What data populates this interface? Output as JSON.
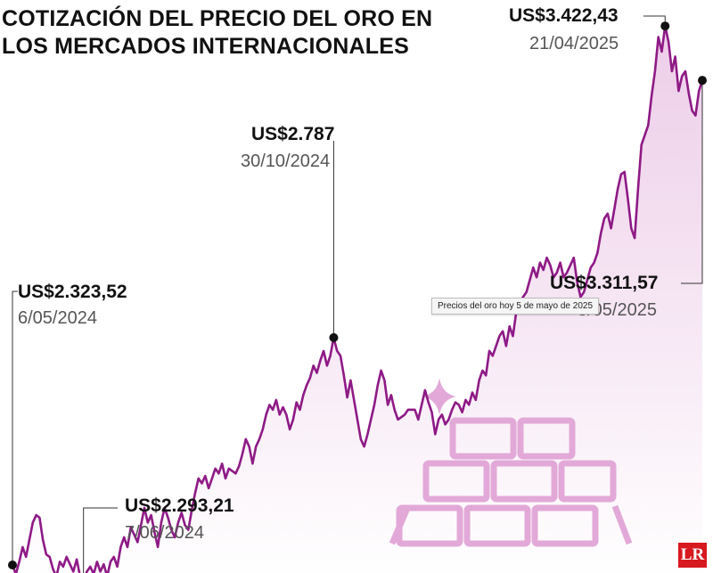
{
  "title_lines": [
    "COTIZACIÓN DEL PRECIO DEL ORO EN",
    "LOS MERCADOS INTERNACIONALES"
  ],
  "tooltip": "Precios del oro hoy 5 de mayo de 2025",
  "logo": "LR",
  "colors": {
    "line": "#8e1a86",
    "fill_top": "#eccbe7",
    "fill_bottom": "#ffffff",
    "marker": "#111111",
    "bars": "#e2a9d8",
    "logo_bg": "#d71920"
  },
  "icons": [
    "sparkle-icon",
    "gold-bars-icon"
  ],
  "annotations": [
    {
      "id": "start",
      "value": "US$2.323,52",
      "date": "6/05/2024"
    },
    {
      "id": "low",
      "value": "US$2.293,21",
      "date": "7/06/2024"
    },
    {
      "id": "oct",
      "value": "US$2.787",
      "date": "30/10/2024"
    },
    {
      "id": "peak",
      "value": "US$3.422,43",
      "date": "21/04/2025"
    },
    {
      "id": "end",
      "value": "US$3.311,57",
      "date": "5/05/2025"
    }
  ],
  "chart_data": {
    "type": "area",
    "title": "COTIZACIÓN DEL PRECIO DEL ORO EN LOS MERCADOS INTERNACIONALES",
    "unit": "US$",
    "x_start": "6/05/2024",
    "x_end": "5/05/2025",
    "ylim": [
      2100,
      3450
    ],
    "grid": false,
    "series": [
      {
        "values": [
          2323.5,
          2305,
          2330,
          2360,
          2340,
          2375,
          2410,
          2425,
          2420,
          2375,
          2345,
          2340,
          2315,
          2300,
          2330,
          2320,
          2340,
          2325,
          2310,
          2335,
          2300,
          2293.2,
          2310,
          2320,
          2305,
          2330,
          2310,
          2325,
          2300,
          2330,
          2340,
          2320,
          2360,
          2380,
          2360,
          2400,
          2385,
          2370,
          2405,
          2440,
          2410,
          2425,
          2390,
          2360,
          2410,
          2440,
          2420,
          2395,
          2380,
          2410,
          2430,
          2405,
          2395,
          2435,
          2470,
          2500,
          2490,
          2505,
          2480,
          2500,
          2520,
          2510,
          2530,
          2500,
          2520,
          2515,
          2510,
          2525,
          2550,
          2580,
          2565,
          2530,
          2565,
          2580,
          2600,
          2630,
          2650,
          2640,
          2660,
          2630,
          2645,
          2630,
          2600,
          2620,
          2655,
          2640,
          2670,
          2690,
          2705,
          2730,
          2715,
          2740,
          2760,
          2730,
          2750,
          2787,
          2760,
          2750,
          2710,
          2665,
          2700,
          2660,
          2620,
          2580,
          2565,
          2590,
          2620,
          2650,
          2690,
          2720,
          2700,
          2650,
          2670,
          2640,
          2620,
          2625,
          2630,
          2640,
          2640,
          2640,
          2620,
          2650,
          2680,
          2655,
          2635,
          2590,
          2620,
          2630,
          2610,
          2620,
          2640,
          2655,
          2650,
          2635,
          2660,
          2650,
          2675,
          2660,
          2700,
          2720,
          2710,
          2760,
          2750,
          2770,
          2790,
          2800,
          2770,
          2810,
          2790,
          2840,
          2860,
          2870,
          2880,
          2905,
          2930,
          2910,
          2940,
          2925,
          2950,
          2935,
          2910,
          2920,
          2940,
          2910,
          2920,
          2935,
          2950,
          2900,
          2870,
          2880,
          2905,
          2930,
          2940,
          2960,
          3000,
          3030,
          3040,
          3010,
          3050,
          3090,
          3120,
          3125,
          3070,
          3010,
          2990,
          3090,
          3180,
          3200,
          3220,
          3280,
          3330,
          3400,
          3370,
          3422.4,
          3390,
          3330,
          3360,
          3290,
          3320,
          3330,
          3285,
          3250,
          3240,
          3290,
          3311.6
        ]
      }
    ]
  }
}
